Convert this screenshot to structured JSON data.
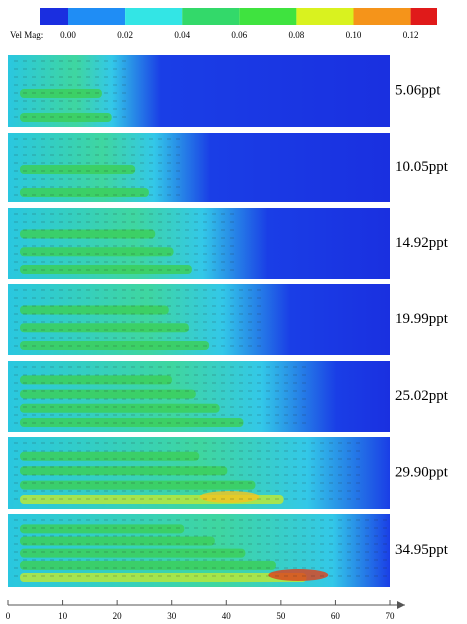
{
  "colorbar": {
    "label": "Vel Mag:",
    "colors": [
      "#1a2ee0",
      "#1f8df5",
      "#33e5e5",
      "#33d96a",
      "#3fe33f",
      "#d9f21f",
      "#f5941a",
      "#e01a1a"
    ],
    "ticks": [
      {
        "value": 0,
        "label": "0.00"
      },
      {
        "value": 0.02,
        "label": "0.02"
      },
      {
        "value": 0.04,
        "label": "0.04"
      },
      {
        "value": 0.06,
        "label": "0.06"
      },
      {
        "value": 0.08,
        "label": "0.08"
      },
      {
        "value": 0.1,
        "label": "0.10"
      },
      {
        "value": 0.12,
        "label": "0.12"
      }
    ]
  },
  "panels": [
    "5.06ppt",
    "10.05ppt",
    "14.92ppt",
    "19.99ppt",
    "25.02ppt",
    "29.90ppt",
    "34.95ppt"
  ],
  "x_axis": {
    "xlim": [
      0,
      70
    ],
    "xticks": [
      0,
      10,
      20,
      30,
      40,
      50,
      60,
      70
    ]
  }
}
